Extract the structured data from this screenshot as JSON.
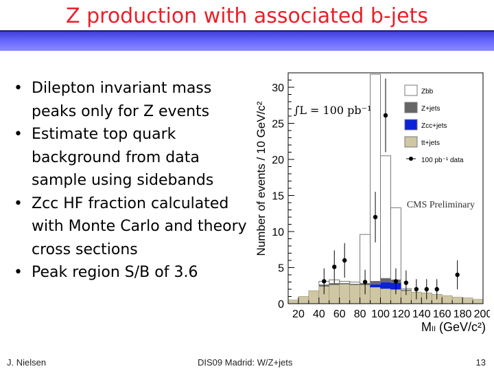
{
  "slide": {
    "title": "Z production with associated b-jets",
    "bullets": [
      "Dilepton invariant mass peaks only for Z events",
      "Estimate top quark background from data sample using sidebands",
      "Zcc HF fraction calculated with Monte Carlo and theory cross sections",
      "Peak region S/B of 3.6"
    ],
    "footer": {
      "author": "J. Nielsen",
      "conference": "DIS09 Madrid: W/Z+jets",
      "page": "13"
    }
  },
  "chart_data": {
    "type": "histogram",
    "ylabel": "Number of events / 10 GeV/c²",
    "xlabel": "Mₗₗ (GeV/c²)",
    "xlim": [
      10,
      200
    ],
    "ylim": [
      0,
      32
    ],
    "xticks": [
      "20",
      "40",
      "60",
      "80",
      "100",
      "120",
      "140",
      "160",
      "180",
      "200"
    ],
    "yticks": [
      "0",
      "5",
      "10",
      "15",
      "20",
      "25",
      "30"
    ],
    "annotation_lumi": "∫L = 100 pb⁻¹",
    "annotation_prelim": "CMS Preliminary",
    "legend_position": "top-right",
    "legend": [
      {
        "name": "Zbb",
        "style": "hollow",
        "color": "#ffffff"
      },
      {
        "name": "Z+jets",
        "style": "filled",
        "color": "#666666"
      },
      {
        "name": "Zcc+jets",
        "style": "filled",
        "color": "#0a22d8"
      },
      {
        "name": "tt+jets",
        "style": "filled",
        "color": "#cfc7a4"
      },
      {
        "name": "100 pb⁻¹ data",
        "style": "marker",
        "color": "#000000"
      }
    ],
    "bin_edges": [
      10,
      20,
      30,
      40,
      50,
      60,
      70,
      80,
      90,
      100,
      110,
      120,
      130,
      140,
      150,
      160,
      170,
      180,
      190,
      200
    ],
    "series": [
      {
        "name": "tt+jets",
        "values": [
          0.5,
          1.0,
          1.8,
          2.4,
          2.6,
          2.7,
          2.6,
          2.6,
          2.3,
          2.1,
          2.0,
          1.8,
          1.6,
          1.5,
          1.3,
          1.1,
          0.9,
          0.8,
          0.6
        ]
      },
      {
        "name": "Zcc+jets",
        "values": [
          0,
          0,
          0,
          0,
          0,
          0,
          0,
          0,
          0.4,
          0.9,
          0.9,
          0,
          0,
          0,
          0,
          0,
          0,
          0,
          0
        ]
      },
      {
        "name": "Z+jets",
        "values": [
          0,
          0,
          0,
          0.2,
          0.2,
          0.1,
          0.1,
          0.2,
          0.4,
          0.5,
          0.4,
          0.1,
          0,
          0,
          0,
          0,
          0,
          0,
          0
        ]
      },
      {
        "name": "Zbb",
        "values": [
          0,
          0,
          0,
          0.5,
          0.5,
          0.3,
          0.3,
          6.8,
          28.7,
          17.0,
          10.0,
          0.2,
          0,
          0,
          0,
          0,
          0,
          0,
          0
        ]
      }
    ],
    "data_points": [
      {
        "x": 45,
        "y": 3.1,
        "yerr": 1.8
      },
      {
        "x": 55,
        "y": 5.1,
        "yerr": 2.3
      },
      {
        "x": 65,
        "y": 6.0,
        "yerr": 2.4
      },
      {
        "x": 85,
        "y": 3.0,
        "yerr": 1.7
      },
      {
        "x": 95,
        "y": 12.0,
        "yerr": 3.5
      },
      {
        "x": 105,
        "y": 26.1,
        "yerr": 5.1
      },
      {
        "x": 115,
        "y": 3.1,
        "yerr": 1.8
      },
      {
        "x": 125,
        "y": 2.9,
        "yerr": 1.7
      },
      {
        "x": 135,
        "y": 2.0,
        "yerr": 1.4
      },
      {
        "x": 145,
        "y": 2.0,
        "yerr": 1.4
      },
      {
        "x": 155,
        "y": 2.0,
        "yerr": 1.4
      },
      {
        "x": 175,
        "y": 4.0,
        "yerr": 2.0
      }
    ]
  }
}
